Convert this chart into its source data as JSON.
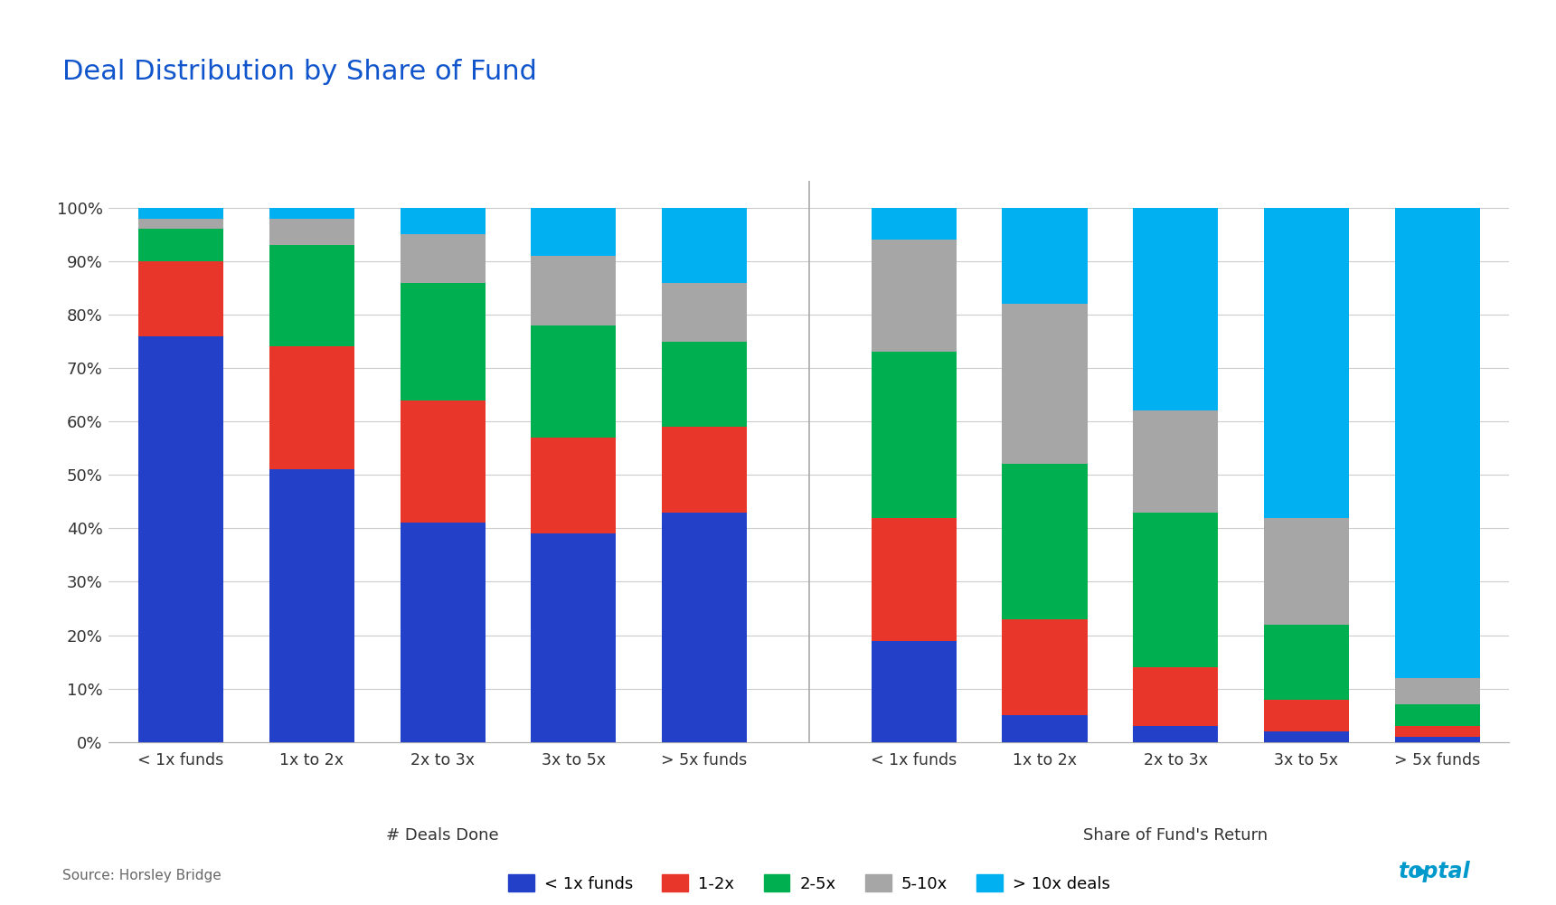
{
  "title": "Deal Distribution by Share of Fund",
  "title_color": "#1155cc",
  "background_color": "#ffffff",
  "group1_label": "# Deals Done",
  "group2_label": "Share of Fund's Return",
  "categories_group1": [
    "< 1x funds",
    "1x to 2x",
    "2x to 3x",
    "3x to 5x",
    "> 5x funds"
  ],
  "categories_group2": [
    "< 1x funds",
    "1x to 2x",
    "2x to 3x",
    "3x to 5x",
    "> 5x funds"
  ],
  "series_labels": [
    "< 1x funds",
    "1-2x",
    "2-5x",
    "5-10x",
    "> 10x deals"
  ],
  "colors": [
    "#2341c8",
    "#e8372a",
    "#00b050",
    "#a6a6a6",
    "#00b0f0"
  ],
  "group1_data": [
    [
      76,
      14,
      6,
      2,
      2
    ],
    [
      51,
      23,
      19,
      5,
      2
    ],
    [
      41,
      23,
      22,
      9,
      5
    ],
    [
      39,
      18,
      21,
      13,
      9
    ],
    [
      43,
      16,
      16,
      11,
      14
    ]
  ],
  "group2_data": [
    [
      19,
      23,
      31,
      21,
      6
    ],
    [
      5,
      18,
      29,
      30,
      18
    ],
    [
      3,
      11,
      29,
      19,
      38
    ],
    [
      2,
      6,
      14,
      20,
      58
    ],
    [
      1,
      2,
      4,
      5,
      88
    ]
  ],
  "ytick_labels": [
    "0%",
    "10%",
    "20%",
    "30%",
    "40%",
    "50%",
    "60%",
    "70%",
    "80%",
    "90%",
    "100%"
  ],
  "ytick_values": [
    0,
    10,
    20,
    30,
    40,
    50,
    60,
    70,
    80,
    90,
    100
  ],
  "source_text": "Source: Horsley Bridge",
  "source_color": "#666666",
  "toptal_color": "#0099cc",
  "bar_width": 0.65
}
